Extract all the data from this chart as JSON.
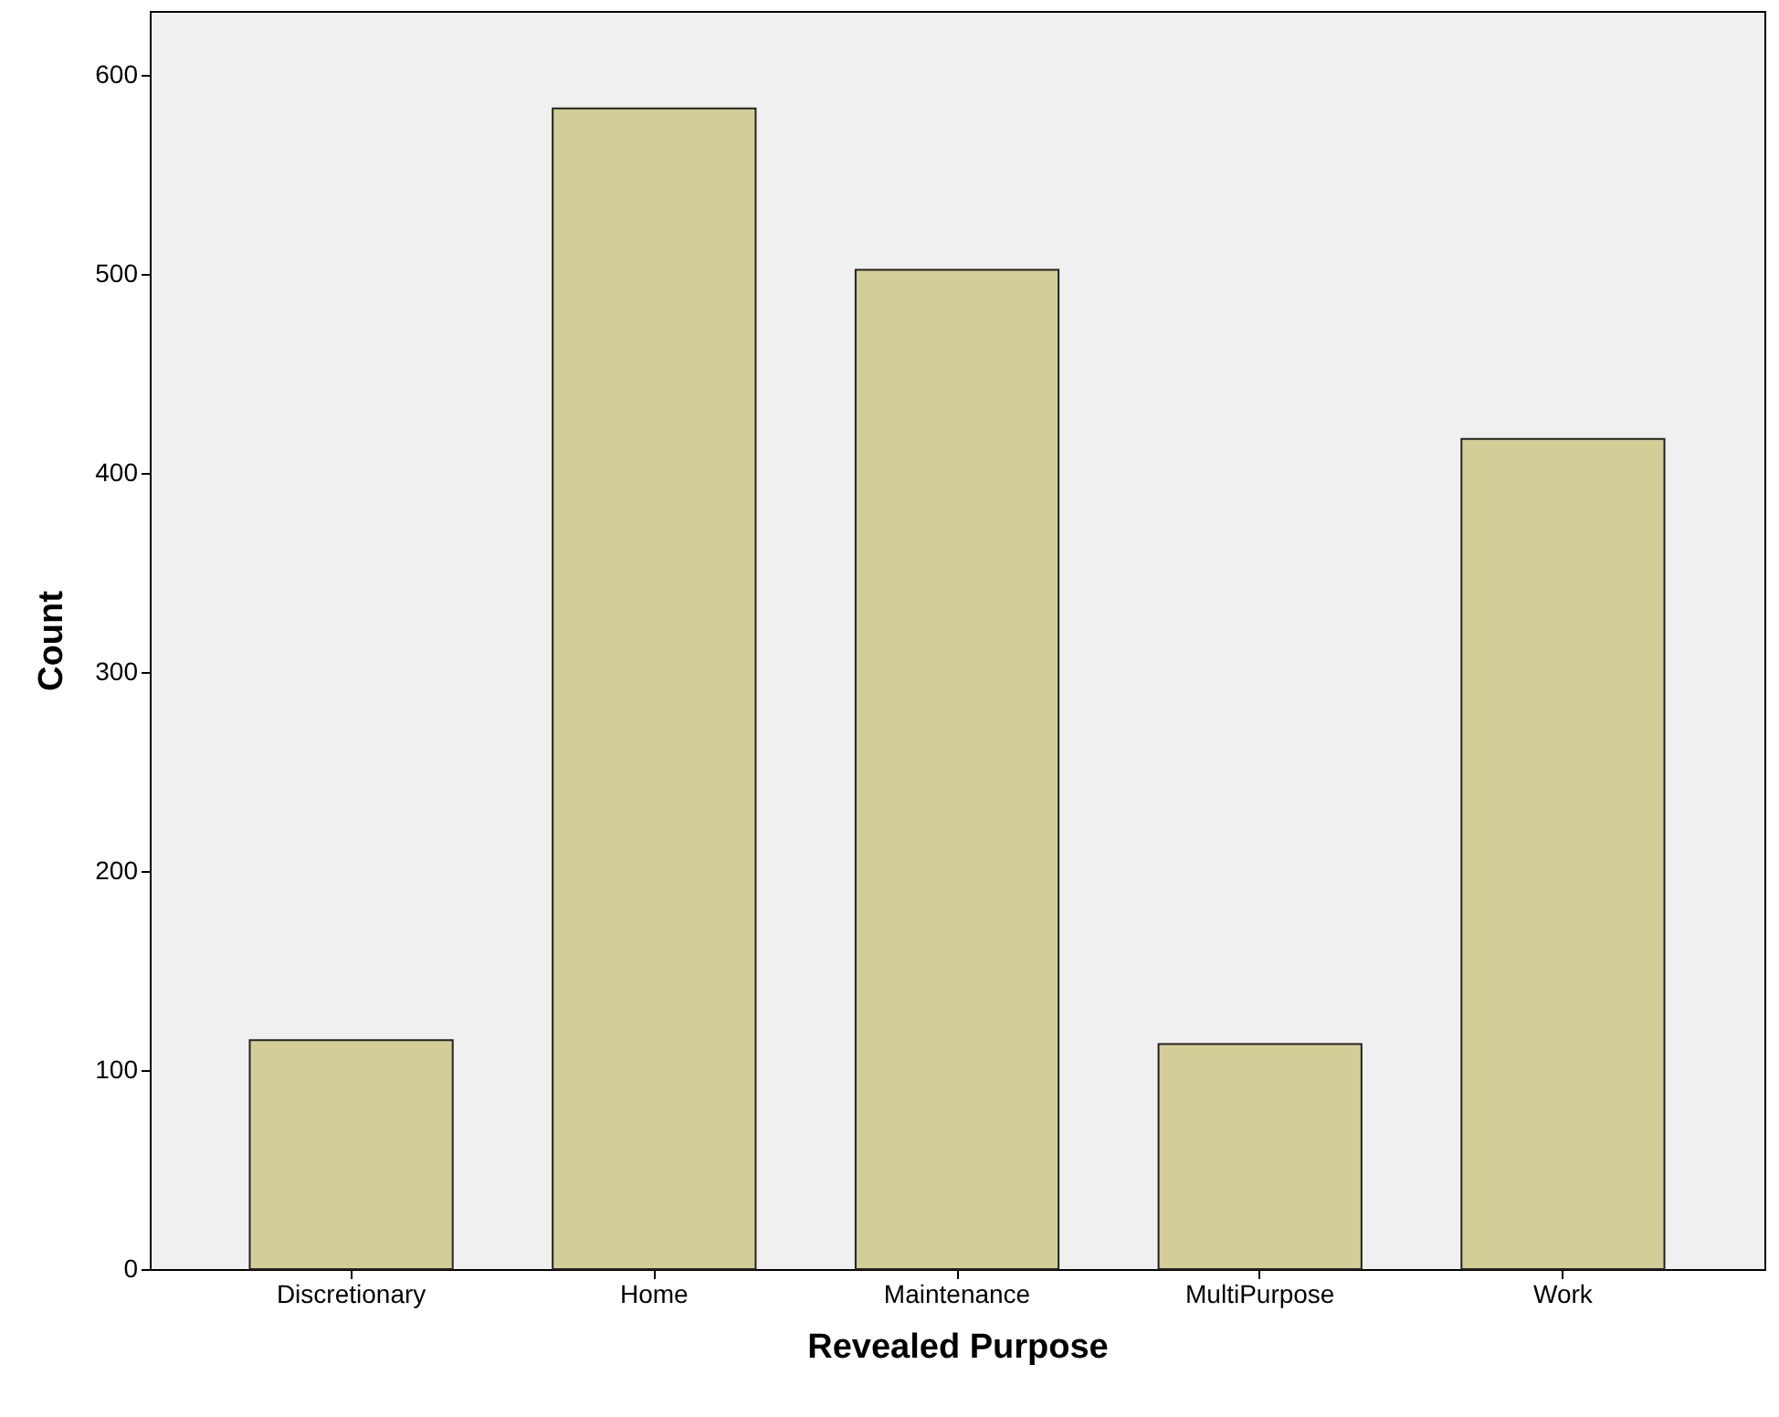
{
  "chart_data": {
    "type": "bar",
    "xlabel": "Revealed Purpose",
    "ylabel": "Count",
    "categories": [
      "Discretionary",
      "Home",
      "Maintenance",
      "MultiPurpose",
      "Work"
    ],
    "values": [
      115,
      583,
      502,
      113,
      417
    ],
    "color": "#d3ce97",
    "ylim": [
      0,
      632
    ],
    "yticks": [
      0,
      100,
      200,
      300,
      400,
      500,
      600
    ],
    "grid": false
  }
}
